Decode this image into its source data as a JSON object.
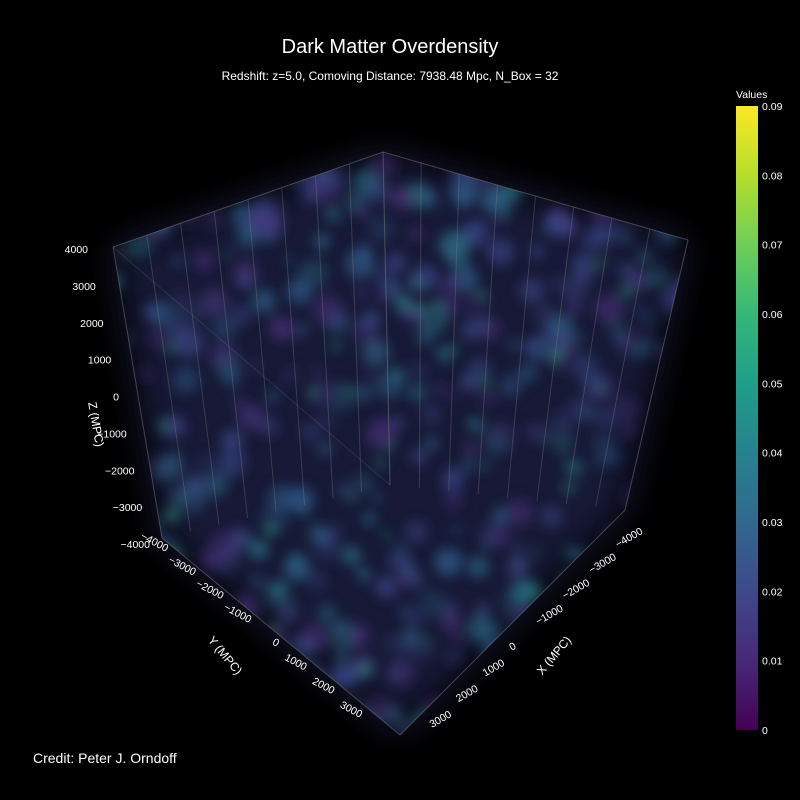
{
  "chart_data": {
    "type": "heatmap",
    "subtype": "3d-volume",
    "title": "Dark Matter Overdensity",
    "subtitle": "Redshift: z=5.0, Comoving Distance: 7938.48 Mpc, N_Box = 32",
    "xlabel": "X (MPC)",
    "ylabel": "Y (MPC)",
    "zlabel": "Z (MPC)",
    "x_ticks": [
      "−4000",
      "−3000",
      "−2000",
      "−1000",
      "0",
      "1000",
      "2000",
      "3000"
    ],
    "y_ticks": [
      "−4000",
      "−3000",
      "−2000",
      "−1000",
      "0",
      "1000",
      "2000",
      "3000"
    ],
    "z_ticks": [
      "4000",
      "3000",
      "2000",
      "1000",
      "0",
      "−1000",
      "−2000",
      "−3000",
      "−4000"
    ],
    "colorbar": {
      "title": "Values",
      "range": [
        0,
        0.09
      ],
      "ticks": [
        "0.09",
        "0.08",
        "0.07",
        "0.06",
        "0.05",
        "0.04",
        "0.03",
        "0.02",
        "0.01",
        "0"
      ],
      "colorscale": "Viridis",
      "colors": [
        "#440154",
        "#482878",
        "#3e4989",
        "#31688e",
        "#26828e",
        "#1f9e89",
        "#35b779",
        "#6ece58",
        "#b5de2b",
        "#fde725"
      ]
    },
    "background": "#000000",
    "grid": true
  },
  "credit": "Credit: Peter J. Orndoff"
}
